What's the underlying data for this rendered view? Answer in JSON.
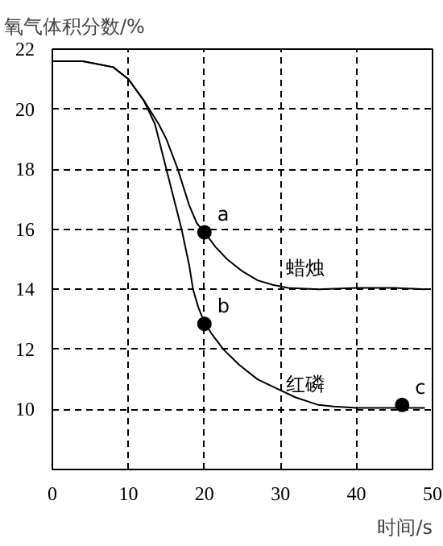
{
  "chart_data": {
    "type": "line",
    "ylabel": "氧气体积分数/%",
    "xlabel": "时间/s",
    "xlim": [
      0,
      50
    ],
    "ylim": [
      8,
      22
    ],
    "xticks": [
      0,
      10,
      20,
      30,
      40,
      50
    ],
    "yticks": [
      10,
      12,
      14,
      16,
      18,
      20,
      22
    ],
    "grid": true,
    "line_style": "solid",
    "marker": "none",
    "series": [
      {
        "name": "蜡烛",
        "color": "#000000",
        "x": [
          0,
          4,
          8,
          10,
          12,
          14,
          15,
          16.5,
          18,
          19,
          20,
          21.5,
          23,
          25,
          27,
          29,
          31,
          35,
          40,
          45,
          49
        ],
        "values": [
          21.6,
          21.6,
          21.4,
          21.0,
          20.3,
          19.5,
          19.0,
          18.0,
          16.8,
          16.2,
          15.9,
          15.4,
          15.0,
          14.6,
          14.3,
          14.15,
          14.05,
          14.0,
          14.05,
          14.05,
          14.0
        ]
      },
      {
        "name": "红磷",
        "color": "#000000",
        "x": [
          0,
          4,
          8,
          10,
          12,
          13.5,
          15,
          16,
          17,
          18,
          18.5,
          19.2,
          20,
          21,
          22.5,
          24.5,
          27,
          29.5,
          32,
          35,
          37,
          40,
          45,
          49
        ],
        "values": [
          21.6,
          21.6,
          21.4,
          21.0,
          20.3,
          19.5,
          18.0,
          17.0,
          16.0,
          14.8,
          14.0,
          13.4,
          12.9,
          12.5,
          12.0,
          11.5,
          11.0,
          10.7,
          10.4,
          10.15,
          10.1,
          10.05,
          10.05,
          10.05
        ]
      },
      {
        "type": "scatter",
        "marker": "circle",
        "color": "#000000",
        "x": [
          20,
          20,
          46
        ],
        "values": [
          15.9,
          12.85,
          10.15
        ]
      }
    ],
    "annotations": [
      "a",
      "b",
      "c"
    ]
  }
}
